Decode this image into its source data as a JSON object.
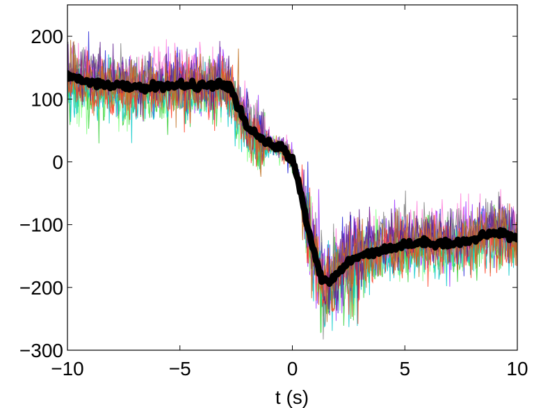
{
  "chart_data": {
    "type": "line",
    "title": "",
    "xlabel": "t (s)",
    "ylabel": "",
    "xlim": [
      -10,
      10
    ],
    "ylim": [
      -300,
      250
    ],
    "grid": false,
    "legend": "none",
    "x_ticks": [
      -10,
      -5,
      0,
      5,
      10
    ],
    "x_tick_labels": [
      "−10",
      "−5",
      "0",
      "5",
      "10"
    ],
    "y_ticks": [
      -300,
      -200,
      -100,
      0,
      100,
      200
    ],
    "y_tick_labels": [
      "−300",
      "−200",
      "−100",
      "0",
      "100",
      "200"
    ],
    "mean_series": {
      "color": "#000000",
      "x": [
        -10,
        -9,
        -8,
        -7,
        -6,
        -5,
        -4,
        -3,
        -2.8,
        -2.5,
        -2,
        -1.5,
        -1,
        -0.5,
        0,
        0.3,
        0.6,
        1,
        1.3,
        1.6,
        2,
        2.5,
        3,
        4,
        5,
        6,
        7,
        8,
        9,
        9.5,
        10
      ],
      "y": [
        135,
        128,
        122,
        118,
        120,
        122,
        121,
        123,
        120,
        95,
        55,
        38,
        28,
        22,
        5,
        -35,
        -90,
        -150,
        -185,
        -195,
        -178,
        -160,
        -148,
        -140,
        -132,
        -128,
        -130,
        -125,
        -112,
        -115,
        -125
      ]
    },
    "trial_colors": [
      "#9b30ff",
      "#1f1fd6",
      "#7fff7f",
      "#32cd32",
      "#ff7ad9",
      "#00c8c8",
      "#7f7f7f",
      "#ff3a1f",
      "#5a1a8c",
      "#c07020"
    ]
  }
}
